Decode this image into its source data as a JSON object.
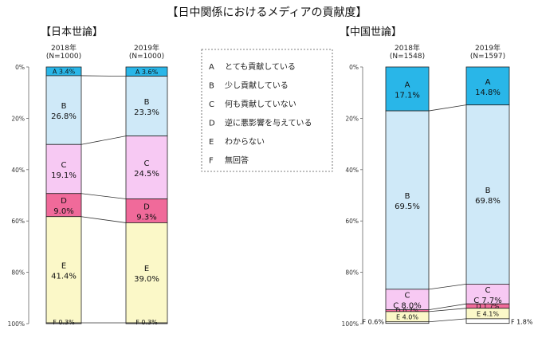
{
  "title": "【日中関係におけるメディアの貢献度】",
  "colors": {
    "A": "#29b6e8",
    "B": "#cfe9f8",
    "C": "#f7c9f3",
    "D": "#f06a9a",
    "E": "#fbf8c8",
    "F": "#ffffff"
  },
  "legend": [
    {
      "key": "A",
      "label": "とても貢献している"
    },
    {
      "key": "B",
      "label": "少し貢献している"
    },
    {
      "key": "C",
      "label": "何も貢献していない"
    },
    {
      "key": "D",
      "label": "逆に悪影響を与えている"
    },
    {
      "key": "E",
      "label": "わからない"
    },
    {
      "key": "F",
      "label": "無回答"
    }
  ],
  "chart_data": [
    {
      "type": "bar",
      "stacked": true,
      "title": "【日本世論】",
      "y_axis": {
        "min": 0,
        "max": 100,
        "inverted": true,
        "ticks": [
          "0%",
          "20%",
          "40%",
          "60%",
          "80%",
          "100%"
        ]
      },
      "categories": [
        {
          "year": "2018年",
          "n": "(N=1000)"
        },
        {
          "year": "2019年",
          "n": "(N=1000)"
        }
      ],
      "series": [
        {
          "key": "A",
          "values": [
            3.4,
            3.6
          ],
          "labels": [
            "A 3.4%",
            "A 3.6%"
          ]
        },
        {
          "key": "B",
          "values": [
            26.8,
            23.3
          ],
          "labels": [
            "26.8%",
            "23.3%"
          ]
        },
        {
          "key": "C",
          "values": [
            19.1,
            24.5
          ],
          "labels": [
            "19.1%",
            "24.5%"
          ]
        },
        {
          "key": "D",
          "values": [
            9.0,
            9.3
          ],
          "labels": [
            "9.0%",
            "9.3%"
          ]
        },
        {
          "key": "E",
          "values": [
            41.4,
            39.0
          ],
          "labels": [
            "41.4%",
            "39.0%"
          ]
        },
        {
          "key": "F",
          "values": [
            0.3,
            0.3
          ],
          "labels": [
            "F 0.3%",
            "F 0.3%"
          ]
        }
      ]
    },
    {
      "type": "bar",
      "stacked": true,
      "title": "【中国世論】",
      "y_axis": {
        "min": 0,
        "max": 100,
        "inverted": true,
        "ticks": [
          "0%",
          "20%",
          "40%",
          "60%",
          "80%",
          "100%"
        ]
      },
      "categories": [
        {
          "year": "2018年",
          "n": "(N=1548)"
        },
        {
          "year": "2019年",
          "n": "(N=1597)"
        }
      ],
      "series": [
        {
          "key": "A",
          "values": [
            17.1,
            14.8
          ],
          "labels": [
            "17.1%",
            "14.8%"
          ]
        },
        {
          "key": "B",
          "values": [
            69.5,
            69.8
          ],
          "labels": [
            "69.5%",
            "69.8%"
          ]
        },
        {
          "key": "C",
          "values": [
            8.0,
            7.7
          ],
          "labels": [
            "C 8.0%",
            "C 7.7%"
          ]
        },
        {
          "key": "D",
          "values": [
            0.7,
            1.7
          ],
          "labels": [
            "D 0.7%",
            "D 1.7%"
          ]
        },
        {
          "key": "E",
          "values": [
            4.0,
            4.1
          ],
          "labels": [
            "E 4.0%",
            "E 4.1%"
          ]
        },
        {
          "key": "F",
          "values": [
            0.6,
            1.8
          ],
          "labels": [
            "F 0.6%",
            "F 1.8%"
          ]
        }
      ]
    }
  ]
}
